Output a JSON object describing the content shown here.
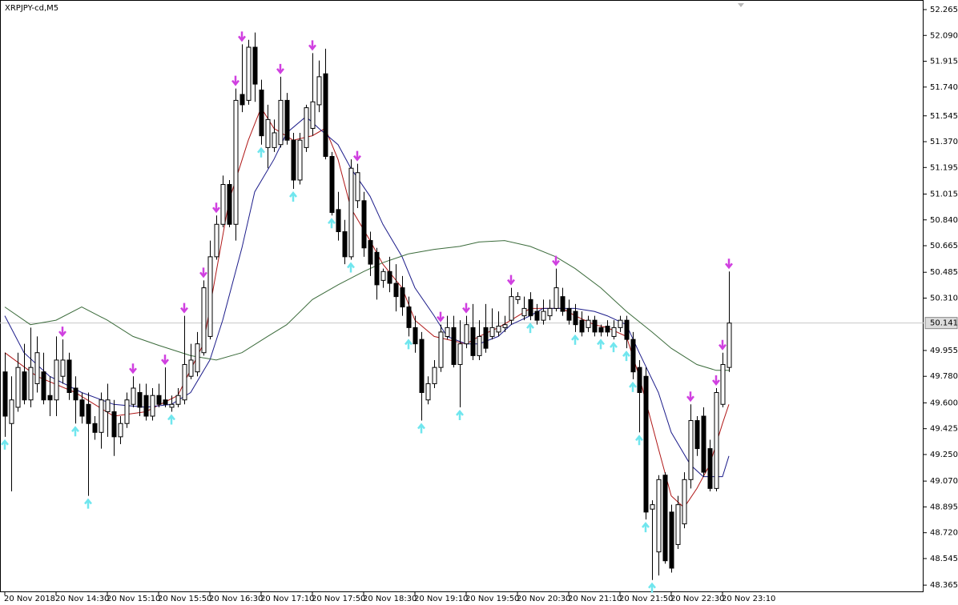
{
  "chart_data": {
    "type": "candlestick",
    "title": "XRPJPY-cd,M5",
    "xlim": [
      -0.75,
      143.375
    ],
    "ylim": [
      48.317,
      52.33
    ],
    "xticks": [
      {
        "value": 0,
        "label": "20 Nov 2018"
      },
      {
        "value": 8,
        "label": "20 Nov 14:30"
      },
      {
        "value": 16,
        "label": "20 Nov 15:10"
      },
      {
        "value": 24,
        "label": "20 Nov 15:50"
      },
      {
        "value": 32,
        "label": "20 Nov 16:30"
      },
      {
        "value": 40,
        "label": "20 Nov 17:10"
      },
      {
        "value": 48,
        "label": "20 Nov 17:50"
      },
      {
        "value": 56,
        "label": "20 Nov 18:30"
      },
      {
        "value": 64,
        "label": "20 Nov 19:10"
      },
      {
        "value": 72,
        "label": "20 Nov 19:50"
      },
      {
        "value": 80,
        "label": "20 Nov 20:30"
      },
      {
        "value": 88,
        "label": "20 Nov 21:10"
      },
      {
        "value": 96,
        "label": "20 Nov 21:50"
      },
      {
        "value": 104,
        "label": "20 Nov 22:30"
      },
      {
        "value": 112,
        "label": "20 Nov 23:10"
      }
    ],
    "yticks": [
      {
        "value": 52.265,
        "label": "52.265"
      },
      {
        "value": 52.09,
        "label": "52.090"
      },
      {
        "value": 51.915,
        "label": "51.915"
      },
      {
        "value": 51.74,
        "label": "51.740"
      },
      {
        "value": 51.545,
        "label": "51.545"
      },
      {
        "value": 51.37,
        "label": "51.370"
      },
      {
        "value": 51.195,
        "label": "51.195"
      },
      {
        "value": 51.015,
        "label": "51.015"
      },
      {
        "value": 50.84,
        "label": "50.840"
      },
      {
        "value": 50.665,
        "label": "50.665"
      },
      {
        "value": 50.485,
        "label": "50.485"
      },
      {
        "value": 50.31,
        "label": "50.310"
      },
      {
        "value": 49.955,
        "label": "49.955"
      },
      {
        "value": 49.78,
        "label": "49.780"
      },
      {
        "value": 49.6,
        "label": "49.600"
      },
      {
        "value": 49.425,
        "label": "49.425"
      },
      {
        "value": 49.25,
        "label": "49.250"
      },
      {
        "value": 49.07,
        "label": "49.070"
      },
      {
        "value": 48.895,
        "label": "48.895"
      },
      {
        "value": 48.72,
        "label": "48.720"
      },
      {
        "value": 48.545,
        "label": "48.545"
      },
      {
        "value": 48.365,
        "label": "48.365"
      }
    ],
    "last_price": {
      "value": 50.141,
      "label": "50.141"
    },
    "up_color": "#ffffff",
    "down_color": "#000000",
    "open": [
      49.81,
      49.46,
      49.57,
      49.81,
      49.62,
      49.73,
      49.81,
      49.65,
      49.62,
      49.78,
      49.89,
      49.7,
      49.62,
      49.59,
      49.46,
      49.4,
      49.54,
      49.54,
      49.37,
      49.46,
      49.59,
      49.67,
      49.65,
      49.51,
      49.65,
      49.62,
      49.57,
      49.59,
      49.62,
      49.78,
      49.81,
      49.94,
      50.05,
      50.59,
      50.81,
      51.08,
      50.81,
      51.69,
      51.65,
      52.01,
      51.72,
      51.33,
      51.33,
      51.35,
      51.65,
      51.38,
      51.11,
      51.33,
      51.46,
      51.62,
      51.83,
      51.27,
      50.91,
      50.76,
      50.59,
      50.97,
      50.97,
      50.7,
      50.62,
      50.43,
      50.49,
      50.41,
      50.38,
      50.25,
      50.11,
      50.03,
      49.62,
      49.73,
      49.84,
      50.05,
      50.11,
      49.86,
      50.0,
      50.11,
      49.92,
      50.11,
      50.05,
      50.08,
      50.11,
      50.16,
      50.3,
      50.19,
      50.3,
      50.22,
      50.16,
      50.19,
      50.24,
      50.32,
      50.24,
      50.22,
      50.16,
      50.11,
      50.16,
      50.11,
      50.12,
      50.05,
      50.11,
      50.16,
      50.03,
      49.84,
      49.78,
      48.88,
      48.59,
      49.11,
      48.86,
      48.64,
      48.78,
      49.08,
      49.48,
      49.51,
      49.29,
      49.02,
      49.59,
      49.84
    ],
    "high": [
      49.94,
      49.78,
      49.94,
      50.0,
      50.11,
      50.05,
      49.94,
      49.78,
      50.05,
      50.03,
      49.94,
      49.78,
      49.67,
      49.67,
      49.51,
      49.67,
      49.73,
      49.62,
      49.51,
      49.67,
      49.78,
      49.73,
      49.73,
      49.7,
      49.73,
      49.84,
      49.65,
      49.7,
      50.19,
      50.0,
      50.08,
      50.43,
      50.7,
      50.87,
      51.14,
      51.11,
      51.73,
      52.03,
      52.06,
      52.11,
      51.79,
      51.62,
      51.52,
      51.81,
      51.7,
      51.43,
      51.43,
      51.62,
      51.97,
      51.92,
      52.0,
      51.3,
      51.03,
      50.84,
      51.25,
      51.22,
      51.03,
      50.76,
      50.65,
      50.51,
      50.59,
      50.54,
      50.46,
      50.32,
      50.19,
      50.08,
      49.78,
      49.89,
      50.13,
      50.19,
      50.19,
      50.16,
      50.19,
      50.27,
      50.16,
      50.27,
      50.24,
      50.22,
      50.19,
      50.38,
      50.35,
      50.32,
      50.35,
      50.27,
      50.3,
      50.3,
      50.51,
      50.38,
      50.3,
      50.27,
      50.22,
      50.19,
      50.19,
      50.13,
      50.16,
      50.16,
      50.19,
      50.19,
      50.08,
      49.89,
      49.84,
      48.94,
      49.11,
      49.13,
      48.91,
      48.97,
      49.13,
      49.59,
      49.51,
      49.57,
      49.35,
      49.7,
      49.94,
      50.49
    ],
    "low": [
      49.37,
      49.0,
      49.54,
      49.59,
      49.57,
      49.67,
      49.59,
      49.51,
      49.51,
      49.73,
      49.62,
      49.46,
      49.46,
      48.97,
      49.35,
      49.29,
      49.37,
      49.24,
      49.32,
      49.43,
      49.57,
      49.51,
      49.48,
      49.48,
      49.57,
      49.57,
      49.54,
      49.57,
      49.59,
      49.76,
      49.78,
      49.92,
      50.03,
      50.57,
      50.79,
      50.79,
      50.7,
      51.57,
      51.62,
      51.64,
      51.35,
      51.19,
      51.3,
      51.33,
      51.35,
      51.05,
      51.08,
      51.3,
      51.41,
      51.57,
      51.25,
      50.87,
      50.7,
      50.54,
      50.57,
      50.92,
      50.59,
      50.46,
      50.3,
      50.38,
      50.35,
      50.22,
      50.19,
      50.05,
      49.94,
      49.48,
      49.59,
      49.7,
      49.81,
      50.03,
      49.84,
      49.57,
      49.97,
      49.89,
      49.89,
      49.94,
      50.03,
      50.05,
      50.08,
      50.13,
      50.27,
      50.16,
      50.16,
      50.13,
      50.13,
      50.16,
      50.22,
      50.19,
      50.13,
      50.08,
      50.05,
      50.08,
      50.05,
      50.05,
      50.05,
      50.03,
      50.08,
      49.97,
      49.76,
      49.4,
      48.81,
      48.4,
      48.43,
      48.51,
      48.45,
      48.61,
      48.75,
      49.02,
      49.24,
      49.1,
      49.0,
      49.0,
      49.57,
      49.81
    ],
    "close": [
      49.51,
      49.62,
      49.84,
      49.62,
      49.84,
      49.94,
      49.62,
      49.62,
      49.89,
      49.89,
      49.67,
      49.62,
      49.51,
      49.46,
      49.4,
      49.62,
      49.62,
      49.37,
      49.46,
      49.62,
      49.7,
      49.57,
      49.51,
      49.65,
      49.59,
      49.59,
      49.59,
      49.65,
      49.86,
      49.89,
      50.0,
      50.38,
      50.59,
      50.81,
      51.08,
      50.81,
      51.65,
      51.62,
      52.01,
      51.76,
      51.41,
      51.52,
      51.43,
      51.65,
      51.38,
      51.11,
      51.38,
      51.6,
      51.64,
      51.81,
      51.27,
      50.89,
      50.76,
      50.59,
      51.19,
      51.16,
      50.65,
      50.54,
      50.4,
      50.49,
      50.41,
      50.32,
      50.25,
      50.11,
      50.0,
      49.67,
      49.73,
      49.84,
      50.08,
      50.11,
      49.86,
      50.0,
      50.13,
      49.92,
      50.05,
      49.97,
      50.11,
      50.12,
      50.13,
      50.32,
      50.32,
      50.24,
      50.19,
      50.16,
      50.22,
      50.24,
      50.38,
      50.22,
      50.16,
      50.13,
      50.08,
      50.16,
      50.08,
      50.08,
      50.08,
      50.11,
      50.16,
      50.03,
      49.81,
      49.67,
      48.86,
      48.91,
      49.08,
      48.53,
      48.48,
      48.91,
      49.08,
      49.48,
      49.29,
      49.13,
      49.02,
      49.67,
      49.86,
      50.141
    ],
    "moving_averages": [
      {
        "color": "#b01818",
        "x": [
          0,
          5,
          11,
          17,
          22,
          27,
          31,
          33,
          35,
          38,
          40,
          42,
          45,
          48,
          50,
          52,
          54,
          57,
          59,
          62,
          64,
          67,
          69,
          72,
          74,
          77,
          79,
          82,
          84,
          87,
          89,
          92,
          94,
          97,
          99,
          102,
          104,
          106,
          108,
          110,
          112,
          113
        ],
        "values": [
          49.94,
          49.78,
          49.67,
          49.51,
          49.54,
          49.65,
          50.0,
          50.49,
          50.97,
          51.38,
          51.6,
          51.46,
          51.38,
          51.41,
          51.46,
          51.25,
          50.92,
          50.7,
          50.54,
          50.38,
          50.16,
          50.05,
          50.03,
          50.0,
          50.05,
          50.11,
          50.16,
          50.24,
          50.24,
          50.24,
          50.19,
          50.13,
          50.11,
          50.05,
          49.78,
          49.29,
          48.97,
          48.89,
          49.02,
          49.18,
          49.46,
          49.59
        ]
      },
      {
        "color": "#1c1c8a",
        "x": [
          0,
          3,
          7,
          12,
          17,
          22,
          26,
          29,
          32,
          34,
          37,
          39,
          42,
          44,
          47,
          49,
          52,
          54,
          57,
          59,
          62,
          64,
          67,
          69,
          72,
          74,
          77,
          79,
          82,
          84,
          87,
          89,
          92,
          94,
          97,
          99,
          102,
          104,
          107,
          109,
          112,
          113
        ],
        "values": [
          50.19,
          49.94,
          49.78,
          49.67,
          49.59,
          49.57,
          49.59,
          49.67,
          49.89,
          50.16,
          50.65,
          51.03,
          51.25,
          51.43,
          51.54,
          51.46,
          51.35,
          51.19,
          51.0,
          50.81,
          50.59,
          50.38,
          50.19,
          50.05,
          50.0,
          50.0,
          50.05,
          50.13,
          50.19,
          50.24,
          50.24,
          50.24,
          50.22,
          50.19,
          50.13,
          49.94,
          49.67,
          49.4,
          49.18,
          49.1,
          49.1,
          49.24
        ]
      },
      {
        "color": "#3b6b3b",
        "x": [
          0,
          4,
          8,
          12,
          16,
          20,
          24,
          29,
          33,
          37,
          41,
          44,
          48,
          52,
          56,
          59,
          63,
          67,
          71,
          74,
          78,
          82,
          86,
          89,
          93,
          97,
          101,
          104,
          108,
          111,
          113
        ],
        "values": [
          50.25,
          50.13,
          50.16,
          50.25,
          50.16,
          50.05,
          49.99,
          49.92,
          49.89,
          49.94,
          50.05,
          50.13,
          50.3,
          50.4,
          50.49,
          50.55,
          50.61,
          50.64,
          50.66,
          50.69,
          50.7,
          50.66,
          50.59,
          50.51,
          50.38,
          50.22,
          50.08,
          49.97,
          49.86,
          49.82,
          49.82
        ]
      }
    ],
    "sell_color": "#d040e0",
    "buy_color": "#70e6ee",
    "sell_signals": [
      9,
      20,
      25,
      28,
      31,
      33,
      36,
      37,
      43,
      48,
      55,
      68,
      72,
      79,
      86,
      107,
      111,
      112,
      113
    ],
    "buy_signals": [
      0,
      11,
      13,
      26,
      40,
      45,
      51,
      54,
      63,
      65,
      71,
      82,
      89,
      93,
      95,
      97,
      98,
      99,
      100,
      101
    ]
  }
}
